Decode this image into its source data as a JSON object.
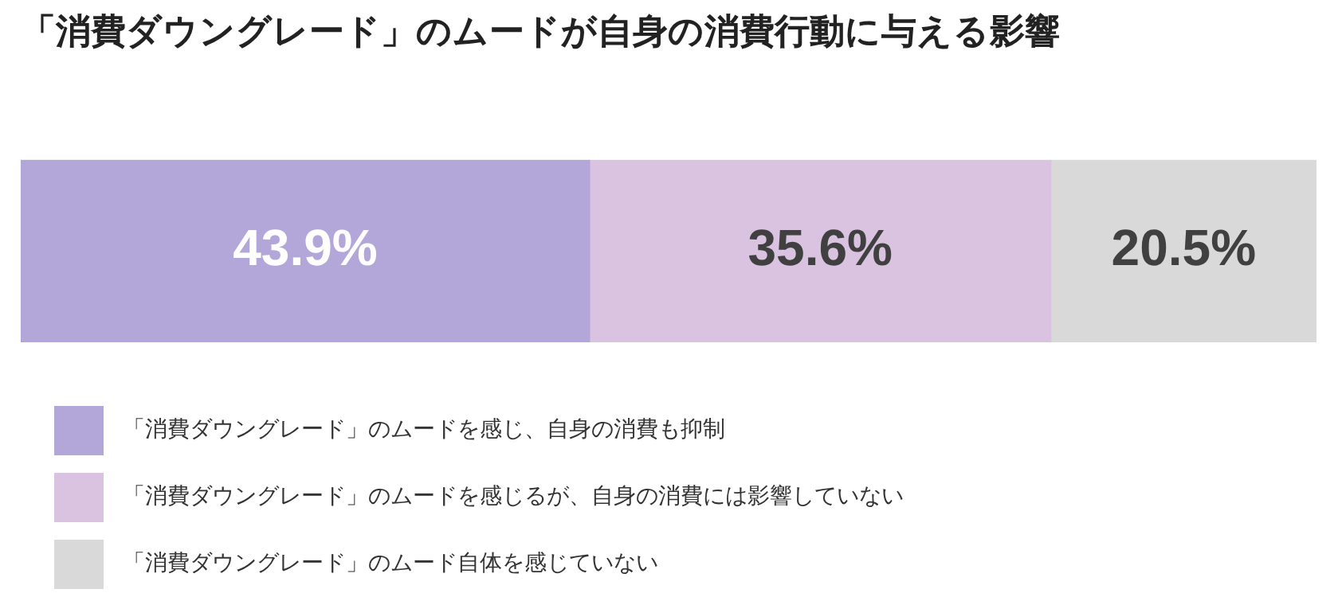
{
  "chart_data": {
    "type": "bar",
    "title": "「消費ダウングレード」のムードが自身の消費行動に与える影響",
    "orientation": "horizontal",
    "stacked": true,
    "categories": [
      null
    ],
    "xlim": [
      0,
      100
    ],
    "legend": "bottom left",
    "series": [
      {
        "name": "「消費ダウングレード」のムードを感じ、自身の消費も抑制",
        "color": "#b3a6d9",
        "values": [
          43.9
        ],
        "value_labels": [
          "43.9%"
        ]
      },
      {
        "name": "「消費ダウングレード」のムードを感じるが、自身の消費には影響していない",
        "color": "#d9c3e1",
        "values": [
          35.6
        ],
        "value_labels": [
          "35.6%"
        ]
      },
      {
        "name": "「消費ダウングレード」のムード自体を感じていない",
        "color": "#d9d9d9",
        "values": [
          20.5
        ],
        "value_labels": [
          "20.5%"
        ]
      }
    ]
  }
}
